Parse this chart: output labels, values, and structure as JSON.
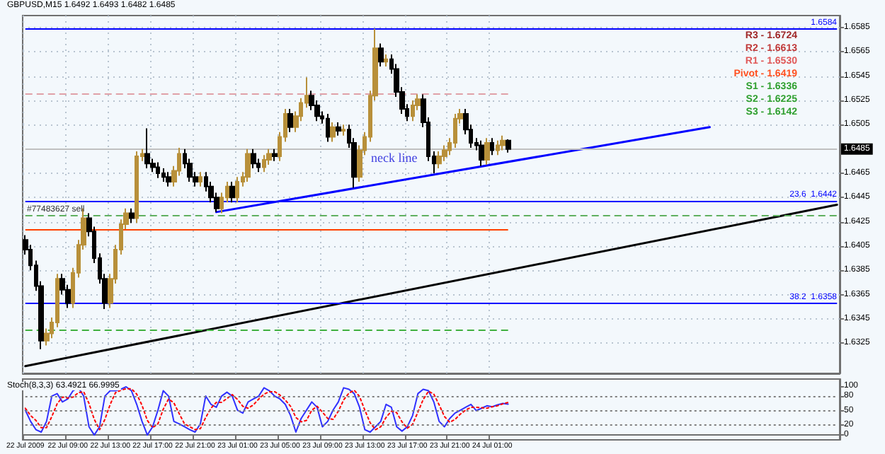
{
  "chart_data": [
    {
      "type": "candlestick",
      "title": "GBPUSD,M15 1.6492 1.6493 1.6482 1.6485",
      "categories": [
        null,
        null,
        null,
        null,
        null,
        null,
        null,
        null,
        null,
        null,
        null,
        null,
        null,
        null,
        null,
        null,
        null,
        null,
        null,
        null,
        null,
        null,
        null,
        null,
        null,
        null,
        null,
        null,
        null,
        null,
        null,
        null,
        null,
        null,
        null,
        null,
        null,
        null,
        null,
        null,
        null,
        null,
        null,
        null,
        null,
        null,
        null,
        null,
        null,
        null,
        null,
        null,
        null,
        null,
        null,
        null,
        null,
        null,
        null,
        null,
        null,
        null,
        null,
        null,
        null,
        null,
        null,
        null,
        null,
        null,
        null,
        null,
        null,
        null,
        null,
        null,
        null,
        null,
        null,
        null,
        null,
        null,
        null,
        null,
        null,
        null,
        null,
        null,
        null,
        null,
        null,
        null,
        null,
        null,
        null,
        null,
        null,
        null,
        null,
        null,
        null,
        null,
        null,
        null,
        null,
        null,
        null,
        null,
        null,
        null,
        null,
        null,
        null,
        null,
        null,
        null,
        null,
        null,
        null,
        null,
        null,
        null,
        null,
        null,
        null,
        null,
        null,
        null,
        null,
        null,
        null,
        null,
        null,
        null,
        null,
        null,
        null,
        null,
        null,
        null,
        null,
        null,
        null,
        null,
        null,
        null,
        null,
        null,
        null,
        null,
        null,
        null,
        null,
        null
      ],
      "ohlc": [
        [
          1.641,
          1.6414,
          1.6398,
          1.6402
        ],
        [
          1.6402,
          1.6406,
          1.6385,
          1.6389
        ],
        [
          1.6389,
          1.6393,
          1.6368,
          1.6372
        ],
        [
          1.6372,
          1.6376,
          1.632,
          1.6327
        ],
        [
          1.6327,
          1.6337,
          1.6323,
          1.6333
        ],
        [
          1.6333,
          1.6346,
          1.6329,
          1.6342
        ],
        [
          1.6342,
          1.6382,
          1.6338,
          1.6378
        ],
        [
          1.6378,
          1.6382,
          1.6365,
          1.6369
        ],
        [
          1.6369,
          1.6373,
          1.6354,
          1.6358
        ],
        [
          1.6358,
          1.6387,
          1.6354,
          1.6383
        ],
        [
          1.6383,
          1.641,
          1.6379,
          1.6406
        ],
        [
          1.6406,
          1.6436,
          1.6402,
          1.6428
        ],
        [
          1.6428,
          1.6432,
          1.6413,
          1.6417
        ],
        [
          1.6417,
          1.6421,
          1.6391,
          1.6395
        ],
        [
          1.6395,
          1.6399,
          1.6374,
          1.6378
        ],
        [
          1.6378,
          1.6382,
          1.6353,
          1.6358
        ],
        [
          1.6358,
          1.6382,
          1.6354,
          1.6378
        ],
        [
          1.6378,
          1.6406,
          1.6374,
          1.6402
        ],
        [
          1.6402,
          1.6427,
          1.6398,
          1.6423
        ],
        [
          1.6423,
          1.6436,
          1.6419,
          1.6432
        ],
        [
          1.6432,
          1.6436,
          1.6424,
          1.6428
        ],
        [
          1.6428,
          1.6483,
          1.6424,
          1.6479
        ],
        [
          1.6479,
          1.6485,
          1.6475,
          1.6481
        ],
        [
          1.6481,
          1.6502,
          1.6469,
          1.6473
        ],
        [
          1.6473,
          1.6477,
          1.6466,
          1.647
        ],
        [
          1.647,
          1.6474,
          1.6461,
          1.6465
        ],
        [
          1.6465,
          1.6469,
          1.6458,
          1.6462
        ],
        [
          1.6462,
          1.6466,
          1.6454,
          1.6458
        ],
        [
          1.6458,
          1.6471,
          1.6454,
          1.6467
        ],
        [
          1.6467,
          1.6486,
          1.6463,
          1.6481
        ],
        [
          1.6481,
          1.6485,
          1.6469,
          1.6473
        ],
        [
          1.6473,
          1.6477,
          1.6458,
          1.6462
        ],
        [
          1.6462,
          1.6466,
          1.6454,
          1.6458
        ],
        [
          1.6458,
          1.6466,
          1.6454,
          1.6462
        ],
        [
          1.6462,
          1.6466,
          1.645,
          1.6454
        ],
        [
          1.6454,
          1.6458,
          1.6441,
          1.6445
        ],
        [
          1.6445,
          1.6449,
          1.6433,
          1.6436
        ],
        [
          1.6436,
          1.6449,
          1.6432,
          1.6445
        ],
        [
          1.6445,
          1.6458,
          1.6441,
          1.6454
        ],
        [
          1.6454,
          1.6458,
          1.6441,
          1.6445
        ],
        [
          1.6445,
          1.6462,
          1.6441,
          1.6458
        ],
        [
          1.6458,
          1.6466,
          1.6454,
          1.6462
        ],
        [
          1.6462,
          1.6485,
          1.6458,
          1.6481
        ],
        [
          1.6481,
          1.6485,
          1.6469,
          1.6473
        ],
        [
          1.6473,
          1.6477,
          1.6466,
          1.647
        ],
        [
          1.647,
          1.648,
          1.6466,
          1.6476
        ],
        [
          1.6476,
          1.6485,
          1.6472,
          1.6481
        ],
        [
          1.6481,
          1.6485,
          1.6475,
          1.6479
        ],
        [
          1.6479,
          1.6499,
          1.6475,
          1.6495
        ],
        [
          1.6495,
          1.6518,
          1.6491,
          1.6514
        ],
        [
          1.6514,
          1.6518,
          1.6499,
          1.6503
        ],
        [
          1.6503,
          1.6516,
          1.6499,
          1.6512
        ],
        [
          1.6512,
          1.6527,
          1.6508,
          1.6523
        ],
        [
          1.6523,
          1.6544,
          1.6519,
          1.6529
        ],
        [
          1.6529,
          1.6533,
          1.6517,
          1.6521
        ],
        [
          1.6521,
          1.6525,
          1.6508,
          1.6512
        ],
        [
          1.6512,
          1.6516,
          1.6506,
          1.651
        ],
        [
          1.651,
          1.6514,
          1.6491,
          1.6495
        ],
        [
          1.6495,
          1.6507,
          1.6491,
          1.6503
        ],
        [
          1.6503,
          1.6507,
          1.6496,
          1.65
        ],
        [
          1.65,
          1.6505,
          1.6496,
          1.6501
        ],
        [
          1.6501,
          1.6505,
          1.6486,
          1.649
        ],
        [
          1.649,
          1.6494,
          1.6453,
          1.6462
        ],
        [
          1.6462,
          1.6488,
          1.6458,
          1.6484
        ],
        [
          1.6484,
          1.6499,
          1.648,
          1.6495
        ],
        [
          1.6495,
          1.6533,
          1.6491,
          1.6529
        ],
        [
          1.6529,
          1.6584,
          1.6525,
          1.6568
        ],
        [
          1.6568,
          1.6572,
          1.6553,
          1.6557
        ],
        [
          1.6557,
          1.6563,
          1.6553,
          1.6559
        ],
        [
          1.6559,
          1.6563,
          1.6547,
          1.6551
        ],
        [
          1.6551,
          1.6555,
          1.6528,
          1.6532
        ],
        [
          1.6532,
          1.6536,
          1.6514,
          1.6518
        ],
        [
          1.6518,
          1.6522,
          1.6508,
          1.6512
        ],
        [
          1.6512,
          1.6525,
          1.6508,
          1.6521
        ],
        [
          1.6521,
          1.653,
          1.6517,
          1.6526
        ],
        [
          1.6526,
          1.653,
          1.6503,
          1.6507
        ],
        [
          1.6507,
          1.6511,
          1.6475,
          1.6479
        ],
        [
          1.6479,
          1.6483,
          1.6465,
          1.6473
        ],
        [
          1.6473,
          1.6483,
          1.6469,
          1.6479
        ],
        [
          1.6479,
          1.6488,
          1.6475,
          1.6484
        ],
        [
          1.6484,
          1.6494,
          1.648,
          1.649
        ],
        [
          1.649,
          1.6514,
          1.6486,
          1.651
        ],
        [
          1.651,
          1.6518,
          1.6506,
          1.6514
        ],
        [
          1.6514,
          1.6518,
          1.6497,
          1.6501
        ],
        [
          1.6501,
          1.6505,
          1.6486,
          1.649
        ],
        [
          1.649,
          1.6494,
          1.6484,
          1.6488
        ],
        [
          1.6488,
          1.6492,
          1.6471,
          1.6476
        ],
        [
          1.6476,
          1.6494,
          1.6472,
          1.649
        ],
        [
          1.649,
          1.6494,
          1.648,
          1.6484
        ],
        [
          1.6484,
          1.6492,
          1.648,
          1.6488
        ],
        [
          1.6488,
          1.6496,
          1.6484,
          1.6492
        ],
        [
          1.6492,
          1.6493,
          1.6482,
          1.6485
        ],
        null,
        null,
        null,
        null,
        null,
        null,
        null,
        null,
        null,
        null,
        null,
        null,
        null,
        null,
        null,
        null,
        null,
        null,
        null,
        null,
        null,
        null,
        null,
        null,
        null,
        null,
        null,
        null,
        null,
        null,
        null,
        null,
        null,
        null,
        null,
        null,
        null,
        null,
        null,
        null,
        null,
        null,
        null,
        null,
        null,
        null,
        null,
        null,
        null,
        null,
        null,
        null,
        null,
        null,
        null,
        null,
        null,
        null,
        null,
        null,
        null,
        null
      ],
      "series": [
        {
          "type": "line",
          "color": "#0000ff",
          "values": [
            null,
            null,
            null,
            null,
            null,
            null,
            null,
            null,
            null,
            null,
            null,
            null,
            null,
            null,
            null,
            null,
            null,
            null,
            null,
            null,
            null,
            null,
            null,
            null,
            null,
            null,
            null,
            null,
            null,
            null,
            null,
            null,
            null,
            null,
            null,
            null,
            1.6433,
            null,
            null,
            null,
            null,
            null,
            null,
            null,
            null,
            null,
            null,
            null,
            null,
            null,
            null,
            null,
            null,
            null,
            null,
            null,
            null,
            null,
            null,
            null,
            null,
            null,
            null,
            null,
            null,
            null,
            null,
            null,
            null,
            null,
            null,
            null,
            null,
            null,
            null,
            null,
            null,
            null,
            null,
            null,
            null,
            null,
            null,
            null,
            null,
            null,
            null,
            null,
            null,
            null,
            null,
            null,
            null,
            null,
            null,
            null,
            null,
            null,
            null,
            null,
            null,
            null,
            null,
            null,
            null,
            null,
            null,
            null,
            null,
            null,
            null,
            null,
            null,
            null,
            null,
            null,
            null,
            null,
            null,
            null,
            null,
            null,
            null,
            null,
            null,
            null,
            null,
            null,
            null,
            1.6503,
            null,
            null,
            null,
            null,
            null,
            null,
            null,
            null,
            null,
            null,
            null,
            null,
            null,
            null,
            null,
            null,
            null,
            null,
            null,
            null,
            null,
            null,
            null,
            null
          ]
        },
        {
          "type": "line",
          "color": "#000000",
          "values": [
            1.6306,
            null,
            null,
            null,
            null,
            null,
            null,
            null,
            null,
            null,
            null,
            null,
            null,
            null,
            null,
            null,
            null,
            null,
            null,
            null,
            null,
            null,
            null,
            null,
            null,
            null,
            null,
            null,
            null,
            null,
            null,
            null,
            null,
            null,
            null,
            null,
            null,
            null,
            null,
            null,
            null,
            null,
            null,
            null,
            null,
            null,
            null,
            null,
            null,
            null,
            null,
            null,
            null,
            null,
            null,
            null,
            null,
            null,
            null,
            null,
            null,
            null,
            null,
            null,
            null,
            null,
            null,
            null,
            null,
            null,
            null,
            null,
            null,
            null,
            null,
            null,
            null,
            null,
            null,
            null,
            null,
            null,
            null,
            null,
            null,
            null,
            null,
            null,
            null,
            null,
            null,
            null,
            null,
            null,
            null,
            null,
            null,
            null,
            null,
            null,
            null,
            null,
            null,
            null,
            null,
            null,
            null,
            null,
            null,
            null,
            null,
            null,
            null,
            null,
            null,
            null,
            null,
            null,
            null,
            null,
            null,
            null,
            null,
            null,
            null,
            null,
            null,
            null,
            null,
            null,
            null,
            null,
            null,
            null,
            null,
            null,
            null,
            null,
            null,
            null,
            null,
            null,
            null,
            null,
            null,
            null,
            null,
            null,
            null,
            null,
            null,
            null,
            null,
            1.6439
          ]
        }
      ],
      "ylim": [
        1.63,
        1.6595
      ],
      "yticks": [
        1.6585,
        1.6565,
        1.6545,
        1.6525,
        1.6505,
        1.6465,
        1.6445,
        1.6425,
        1.6405,
        1.6385,
        1.6365,
        1.6345,
        1.6325
      ],
      "ref_lines": [
        {
          "axis": "y",
          "value": 1.6584,
          "label": "1.6584",
          "color": "#0000ff"
        },
        {
          "axis": "y",
          "value": 1.6442,
          "label": "23.6  1.6442",
          "color": "#0000ff"
        },
        {
          "axis": "y",
          "value": 1.6358,
          "label": "38.2  1.6358",
          "color": "#0000ff"
        },
        {
          "axis": "y",
          "value": 1.643,
          "label": "#77483627 sell",
          "color": "#60b060",
          "line_style": "dashed"
        },
        {
          "axis": "y",
          "value": 1.6485,
          "label": "1.6485",
          "color": "#c0c0c0"
        },
        {
          "axis": "y",
          "value": 1.653,
          "color": "#e0a0a8",
          "line_style": "dashed"
        },
        {
          "axis": "y",
          "value": 1.6419,
          "color": "#ff4000"
        },
        {
          "axis": "y",
          "value": 1.6336,
          "color": "#40b040",
          "line_style": "dashed"
        }
      ],
      "annotations": [
        "R3 - 1.6724",
        "R2 - 1.6613",
        "R1 - 1.6530",
        "Pivot - 1.6419",
        "S1 - 1.6336",
        "S2 - 1.6225",
        "S3 - 1.6142",
        "neck line"
      ],
      "grid": true,
      "tick_labels": "y"
    },
    {
      "type": "line",
      "title": "Stoch(8,3,3) 63.4921 66.9995",
      "categories": [
        "22 Jul 2009",
        null,
        null,
        null,
        null,
        null,
        null,
        null,
        "22 Jul 09:00",
        null,
        null,
        null,
        null,
        null,
        null,
        null,
        "22 Jul 13:00",
        null,
        null,
        null,
        null,
        null,
        null,
        null,
        "22 Jul 17:00",
        null,
        null,
        null,
        null,
        null,
        null,
        null,
        "22 Jul 21:00",
        null,
        null,
        null,
        null,
        null,
        null,
        null,
        "23 Jul 01:00",
        null,
        null,
        null,
        null,
        null,
        null,
        null,
        "23 Jul 05:00",
        null,
        null,
        null,
        null,
        null,
        null,
        null,
        "23 Jul 09:00",
        null,
        null,
        null,
        null,
        null,
        null,
        null,
        "23 Jul 13:00",
        null,
        null,
        null,
        null,
        null,
        null,
        null,
        "23 Jul 17:00",
        null,
        null,
        null,
        null,
        null,
        null,
        null,
        "23 Jul 21:00",
        null,
        null,
        null,
        null,
        null,
        null,
        null,
        "24 Jul 01:00",
        null,
        null,
        null,
        null,
        null,
        null,
        null,
        null,
        null,
        null,
        null,
        null,
        null,
        null,
        null,
        null,
        null,
        null,
        null,
        null,
        null,
        null,
        null,
        null,
        null,
        null,
        null,
        null,
        null,
        null,
        null,
        null,
        null,
        null,
        null,
        null,
        null,
        null,
        null,
        null,
        null,
        null,
        null,
        null,
        null,
        null,
        null,
        null,
        null,
        null,
        null,
        null,
        null,
        null,
        null,
        null,
        null,
        null,
        null,
        null,
        null,
        null,
        null,
        null,
        null
      ],
      "series": [
        {
          "color": "#3030ff",
          "line_style": "solid",
          "values": [
            51,
            28,
            11,
            6,
            28,
            80,
            85,
            68,
            74,
            91,
            97,
            80,
            17,
            0,
            17,
            80,
            91,
            91,
            94,
            99,
            91,
            63,
            28,
            0,
            17,
            51,
            91,
            80,
            28,
            23,
            17,
            11,
            6,
            23,
            80,
            63,
            57,
            80,
            88,
            80,
            51,
            45,
            68,
            74,
            80,
            97,
            91,
            80,
            74,
            63,
            40,
            6,
            34,
            51,
            68,
            57,
            17,
            28,
            51,
            68,
            97,
            94,
            85,
            57,
            11,
            6,
            17,
            28,
            63,
            57,
            17,
            8,
            17,
            40,
            85,
            94,
            91,
            68,
            28,
            17,
            34,
            45,
            51,
            57,
            63,
            50,
            55,
            60,
            58,
            62,
            65,
            63.4921,
            null,
            null,
            null,
            null,
            null,
            null,
            null,
            null,
            null,
            null,
            null,
            null,
            null,
            null,
            null,
            null,
            null,
            null,
            null,
            null,
            null,
            null,
            null,
            null,
            null,
            null,
            null,
            null,
            null,
            null,
            null,
            null,
            null,
            null,
            null,
            null,
            null,
            null,
            null,
            null,
            null,
            null,
            null,
            null,
            null,
            null,
            null,
            null,
            null,
            null,
            null,
            null,
            null,
            null,
            null,
            null,
            null,
            null,
            null,
            null,
            null,
            null
          ]
        },
        {
          "color": "#ff0000",
          "line_style": "dotted",
          "values": [
            55,
            40,
            30,
            15,
            15,
            38,
            64,
            78,
            76,
            78,
            87,
            89,
            65,
            32,
            11,
            32,
            63,
            87,
            92,
            95,
            95,
            84,
            61,
            30,
            15,
            23,
            53,
            74,
            66,
            44,
            23,
            17,
            11,
            13,
            36,
            55,
            67,
            67,
            75,
            83,
            73,
            59,
            55,
            62,
            74,
            84,
            89,
            89,
            82,
            72,
            59,
            36,
            27,
            30,
            51,
            59,
            47,
            34,
            32,
            49,
            72,
            86,
            92,
            79,
            51,
            25,
            11,
            17,
            36,
            49,
            46,
            27,
            14,
            22,
            47,
            73,
            90,
            84,
            62,
            38,
            26,
            32,
            43,
            51,
            57,
            57,
            56,
            55,
            58,
            60,
            64,
            66.9995,
            null,
            null,
            null,
            null,
            null,
            null,
            null,
            null,
            null,
            null,
            null,
            null,
            null,
            null,
            null,
            null,
            null,
            null,
            null,
            null,
            null,
            null,
            null,
            null,
            null,
            null,
            null,
            null,
            null,
            null,
            null,
            null,
            null,
            null,
            null,
            null,
            null,
            null,
            null,
            null,
            null,
            null,
            null,
            null,
            null,
            null,
            null,
            null,
            null,
            null,
            null,
            null,
            null,
            null,
            null,
            null,
            null,
            null,
            null,
            null,
            null,
            null
          ]
        }
      ],
      "ylim": [
        -10,
        115
      ],
      "yticks": [
        0,
        20,
        50,
        80,
        100
      ],
      "ref_lines": [
        {
          "axis": "y",
          "value": 80,
          "color": "#808080",
          "line_style": "dotted"
        },
        {
          "axis": "y",
          "value": 50,
          "color": "#808080",
          "line_style": "dotted"
        },
        {
          "axis": "y",
          "value": 20,
          "color": "#808080",
          "line_style": "dotted"
        }
      ]
    }
  ]
}
